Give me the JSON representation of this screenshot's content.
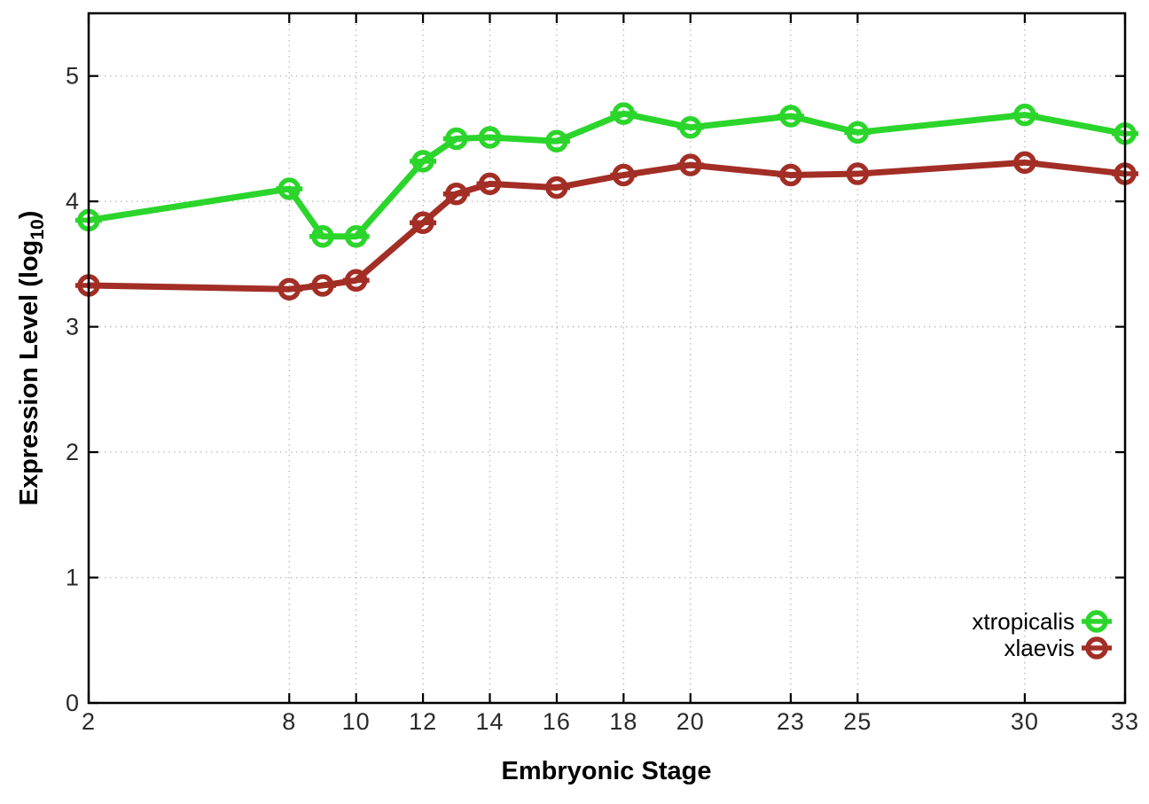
{
  "chart_data": {
    "type": "line",
    "title": "",
    "xlabel": "Embryonic Stage",
    "ylabel": "Expression Level (log10)",
    "ylabel_parts": {
      "prefix": "Expression Level (log",
      "sub": "10",
      "suffix": ")"
    },
    "x": [
      2,
      8,
      9,
      10,
      12,
      13,
      14,
      16,
      18,
      20,
      23,
      25,
      30,
      33
    ],
    "series": [
      {
        "name": "xtropicalis",
        "color": "#2bd52b",
        "values": [
          3.85,
          4.1,
          3.72,
          3.72,
          4.32,
          4.5,
          4.51,
          4.48,
          4.7,
          4.59,
          4.68,
          4.55,
          4.69,
          4.54
        ]
      },
      {
        "name": "xlaevis",
        "color": "#a22e26",
        "values": [
          3.33,
          3.3,
          3.33,
          3.37,
          3.83,
          4.06,
          4.14,
          4.11,
          4.21,
          4.29,
          4.21,
          4.22,
          4.31,
          4.22
        ]
      }
    ],
    "xticks": [
      2,
      8,
      10,
      12,
      14,
      16,
      18,
      20,
      23,
      25,
      30,
      33
    ],
    "yticks": [
      0,
      1,
      2,
      3,
      4,
      5
    ],
    "xlim": [
      2,
      33
    ],
    "ylim": [
      0,
      5.5
    ],
    "grid": true,
    "grid_color": "#bdbdbd",
    "axis_color": "#000000",
    "legend_position": "bottom-right-inside",
    "marker": "circle-minus"
  }
}
